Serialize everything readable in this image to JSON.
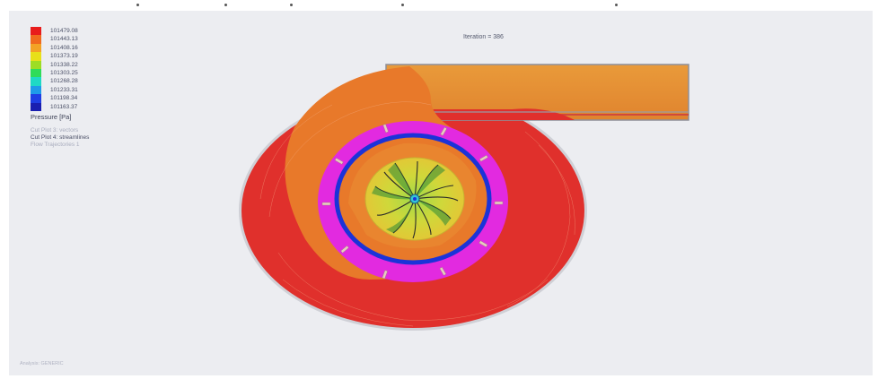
{
  "legend": {
    "title": "Pressure [Pa]",
    "entries": [
      {
        "label": "101479.08",
        "color": "#e81c1c"
      },
      {
        "label": "101443.13",
        "color": "#f06a1e"
      },
      {
        "label": "101408.16",
        "color": "#f3a325"
      },
      {
        "label": "101373.19",
        "color": "#e8e019"
      },
      {
        "label": "101338.22",
        "color": "#9ddd24"
      },
      {
        "label": "101303.25",
        "color": "#2fdc5a"
      },
      {
        "label": "101268.28",
        "color": "#1fd9c5"
      },
      {
        "label": "101233.31",
        "color": "#1f9be9"
      },
      {
        "label": "101198.34",
        "color": "#1f3fe4"
      },
      {
        "label": "101163.37",
        "color": "#1a1fb0"
      }
    ]
  },
  "cut_plots": [
    {
      "label": "Cut Plot 3: vectors",
      "active": false
    },
    {
      "label": "Cut Plot 4: streamlines",
      "active": true
    },
    {
      "label": "Flow Trajectories 1",
      "active": false
    }
  ],
  "iteration_text": "Iteration = 386",
  "footer_text": "Analysis: GENERIC",
  "colors": {
    "volute_outer": "#e0302c",
    "volute_inner": "#e8792a",
    "pipe": "#e49433",
    "diffuser": "#e22ae0",
    "impeller_ring": "#1b33d8",
    "hub": "#d6d23a",
    "background": "#ecedf1"
  }
}
